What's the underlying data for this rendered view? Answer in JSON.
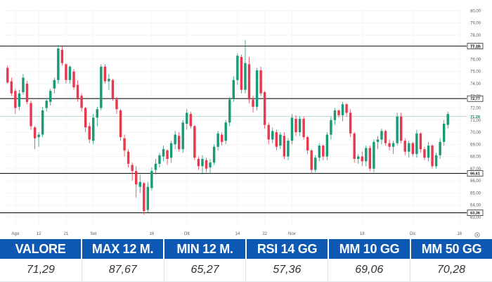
{
  "chart_data": {
    "type": "candlestick",
    "y_ticks": [
      "63,00",
      "64,00",
      "65,00",
      "66,00",
      "67,00",
      "68,00",
      "69,00",
      "70,00",
      "71,00",
      "72,00",
      "73,00",
      "74,00",
      "75,00",
      "76,00",
      "77,00",
      "78,00",
      "79,00",
      "80,00"
    ],
    "y_range": [
      62.7,
      80.2
    ],
    "x_ticks": [
      {
        "label": "Ago",
        "index": 2
      },
      {
        "label": "12",
        "index": 8
      },
      {
        "label": "21",
        "index": 15
      },
      {
        "label": "Set",
        "index": 22
      },
      {
        "label": "16",
        "index": 37
      },
      {
        "label": "Ott",
        "index": 46
      },
      {
        "label": "14",
        "index": 59
      },
      {
        "label": "22",
        "index": 66
      },
      {
        "label": "Nov",
        "index": 73
      },
      {
        "label": "18",
        "index": 91
      },
      {
        "label": "Dic",
        "index": 104
      },
      {
        "label": "16",
        "index": 116
      }
    ],
    "levels": [
      {
        "value": 77.1,
        "label": "77,10"
      },
      {
        "value": 72.77,
        "label": "72,77"
      },
      {
        "value": 66.61,
        "label": "66,61"
      },
      {
        "value": 63.36,
        "label": "63,36"
      }
    ],
    "last_price": {
      "value": 71.29,
      "label": "71,29"
    },
    "colors": {
      "up": "#1a9b78",
      "down": "#e8394f",
      "level": "#1a1a1a",
      "last": "#1a9b78"
    },
    "candles": [
      [
        75.3,
        75.5,
        74.0,
        74.1
      ],
      [
        74.2,
        74.5,
        73.0,
        73.2
      ],
      [
        73.4,
        73.6,
        71.5,
        72.0
      ],
      [
        72.1,
        73.5,
        71.8,
        73.2
      ],
      [
        73.3,
        74.8,
        73.1,
        74.5
      ],
      [
        74.0,
        74.2,
        72.3,
        72.5
      ],
      [
        72.4,
        72.6,
        70.2,
        70.5
      ],
      [
        70.4,
        70.5,
        68.6,
        69.5
      ],
      [
        69.6,
        70.0,
        68.8,
        69.8
      ],
      [
        69.8,
        72.1,
        69.6,
        71.8
      ],
      [
        72.0,
        72.8,
        71.7,
        72.6
      ],
      [
        72.5,
        73.6,
        72.2,
        73.4
      ],
      [
        73.6,
        74.5,
        73.2,
        74.3
      ],
      [
        74.3,
        77.2,
        74.0,
        76.9
      ],
      [
        76.8,
        77.1,
        75.5,
        75.7
      ],
      [
        75.6,
        75.7,
        74.0,
        74.3
      ],
      [
        74.3,
        75.5,
        74.0,
        75.4
      ],
      [
        75.0,
        75.2,
        73.5,
        73.7
      ],
      [
        73.9,
        74.3,
        72.5,
        72.8
      ],
      [
        73.0,
        73.2,
        71.7,
        72.0
      ],
      [
        72.0,
        72.1,
        70.0,
        70.4
      ],
      [
        70.5,
        70.8,
        69.1,
        69.4
      ],
      [
        69.3,
        71.5,
        69.0,
        71.2
      ],
      [
        71.2,
        72.1,
        70.5,
        71.9
      ],
      [
        72.0,
        75.6,
        71.8,
        75.4
      ],
      [
        75.4,
        75.6,
        74.0,
        74.2
      ],
      [
        74.2,
        74.8,
        73.5,
        74.4
      ],
      [
        74.3,
        74.4,
        72.6,
        72.8
      ],
      [
        72.7,
        72.9,
        71.5,
        71.9
      ],
      [
        71.8,
        71.9,
        69.3,
        69.6
      ],
      [
        69.5,
        69.8,
        68.0,
        68.5
      ],
      [
        68.4,
        68.6,
        67.1,
        67.4
      ],
      [
        67.3,
        67.5,
        66.0,
        66.8
      ],
      [
        66.8,
        67.2,
        64.6,
        65.7
      ],
      [
        65.5,
        66.5,
        65.0,
        65.9
      ],
      [
        65.8,
        65.9,
        63.2,
        63.5
      ],
      [
        63.6,
        65.9,
        63.4,
        65.5
      ],
      [
        65.4,
        67.1,
        65.2,
        66.8
      ],
      [
        66.9,
        67.8,
        66.5,
        67.4
      ],
      [
        67.4,
        68.3,
        67.1,
        68.1
      ],
      [
        68.0,
        68.9,
        67.6,
        68.6
      ],
      [
        68.5,
        68.6,
        67.3,
        67.8
      ],
      [
        67.9,
        69.3,
        67.5,
        69.1
      ],
      [
        69.0,
        70.1,
        68.6,
        69.8
      ],
      [
        69.7,
        70.0,
        68.4,
        68.6
      ],
      [
        68.6,
        71.0,
        68.3,
        70.8
      ],
      [
        70.7,
        71.9,
        70.2,
        71.6
      ],
      [
        71.5,
        71.7,
        70.3,
        70.5
      ],
      [
        70.5,
        70.6,
        67.7,
        67.9
      ],
      [
        67.8,
        68.0,
        66.9,
        67.2
      ],
      [
        67.2,
        68.1,
        66.5,
        67.8
      ],
      [
        67.7,
        67.9,
        66.7,
        67.0
      ],
      [
        67.1,
        67.8,
        66.6,
        67.5
      ],
      [
        67.5,
        69.0,
        67.3,
        68.8
      ],
      [
        68.8,
        70.1,
        68.5,
        69.9
      ],
      [
        69.8,
        70.0,
        68.9,
        69.2
      ],
      [
        69.3,
        71.0,
        69.0,
        70.8
      ],
      [
        70.8,
        72.9,
        70.5,
        72.7
      ],
      [
        72.8,
        74.6,
        72.5,
        74.3
      ],
      [
        74.3,
        76.5,
        73.9,
        76.3
      ],
      [
        76.2,
        76.4,
        73.2,
        73.5
      ],
      [
        73.5,
        77.6,
        73.2,
        75.7
      ],
      [
        75.6,
        76.2,
        72.4,
        72.7
      ],
      [
        72.7,
        73.0,
        71.6,
        72.1
      ],
      [
        72.1,
        75.3,
        71.8,
        75.1
      ],
      [
        75.1,
        75.4,
        73.0,
        73.2
      ],
      [
        73.3,
        73.4,
        70.3,
        70.6
      ],
      [
        70.6,
        70.8,
        69.0,
        69.4
      ],
      [
        69.4,
        70.4,
        69.1,
        70.1
      ],
      [
        70.0,
        70.2,
        68.5,
        68.8
      ],
      [
        68.9,
        70.0,
        68.6,
        69.8
      ],
      [
        69.7,
        70.0,
        67.8,
        68.0
      ],
      [
        68.0,
        69.5,
        67.7,
        69.3
      ],
      [
        69.3,
        71.5,
        69.0,
        71.2
      ],
      [
        71.1,
        71.4,
        69.7,
        70.0
      ],
      [
        70.0,
        71.3,
        69.7,
        71.1
      ],
      [
        71.1,
        71.3,
        69.4,
        69.6
      ],
      [
        69.6,
        69.7,
        68.2,
        68.5
      ],
      [
        68.5,
        68.6,
        66.6,
        66.9
      ],
      [
        66.9,
        68.1,
        66.7,
        67.9
      ],
      [
        67.9,
        69.1,
        67.6,
        68.9
      ],
      [
        68.9,
        69.0,
        67.7,
        68.0
      ],
      [
        68.0,
        70.0,
        67.7,
        69.8
      ],
      [
        69.8,
        71.3,
        69.4,
        71.0
      ],
      [
        71.0,
        72.0,
        70.6,
        71.8
      ],
      [
        71.8,
        71.9,
        71.2,
        71.4
      ],
      [
        71.4,
        72.5,
        70.9,
        72.3
      ],
      [
        72.3,
        72.4,
        71.3,
        71.6
      ],
      [
        71.6,
        71.9,
        69.6,
        69.9
      ],
      [
        69.9,
        70.0,
        67.5,
        67.8
      ],
      [
        67.8,
        68.2,
        67.4,
        68.0
      ],
      [
        68.0,
        68.4,
        67.2,
        67.6
      ],
      [
        67.6,
        68.9,
        67.2,
        68.7
      ],
      [
        68.7,
        68.9,
        66.8,
        67.0
      ],
      [
        67.0,
        69.4,
        66.7,
        69.2
      ],
      [
        69.2,
        69.7,
        68.6,
        69.4
      ],
      [
        69.4,
        70.3,
        69.0,
        70.1
      ],
      [
        70.1,
        70.2,
        68.9,
        69.1
      ],
      [
        69.1,
        69.4,
        68.5,
        68.8
      ],
      [
        68.8,
        69.3,
        68.2,
        69.1
      ],
      [
        69.1,
        71.6,
        68.9,
        71.3
      ],
      [
        71.3,
        71.6,
        69.1,
        69.3
      ],
      [
        69.3,
        69.5,
        68.1,
        68.4
      ],
      [
        68.4,
        69.3,
        67.9,
        69.1
      ],
      [
        69.1,
        69.2,
        68.0,
        68.2
      ],
      [
        68.2,
        70.2,
        67.9,
        69.9
      ],
      [
        69.9,
        70.0,
        68.3,
        68.6
      ],
      [
        68.6,
        68.8,
        67.7,
        67.9
      ],
      [
        67.9,
        69.2,
        67.6,
        68.9
      ],
      [
        68.9,
        69.0,
        67.0,
        67.2
      ],
      [
        67.2,
        68.3,
        67.0,
        68.1
      ],
      [
        68.1,
        69.5,
        67.8,
        69.2
      ],
      [
        69.2,
        71.0,
        68.9,
        70.7
      ],
      [
        70.6,
        71.7,
        70.3,
        71.5
      ]
    ]
  },
  "stats": {
    "headers": [
      "VALORE",
      "MAX 12 M.",
      "MIN 12 M.",
      "RSI 14 GG",
      "MM 10 GG",
      "MM 50 GG"
    ],
    "values": [
      "71,29",
      "87,67",
      "65,27",
      "57,36",
      "69,06",
      "70,28"
    ],
    "header_bg": "#0d58b3"
  },
  "controls": {
    "settings_icon": "gear-icon"
  }
}
